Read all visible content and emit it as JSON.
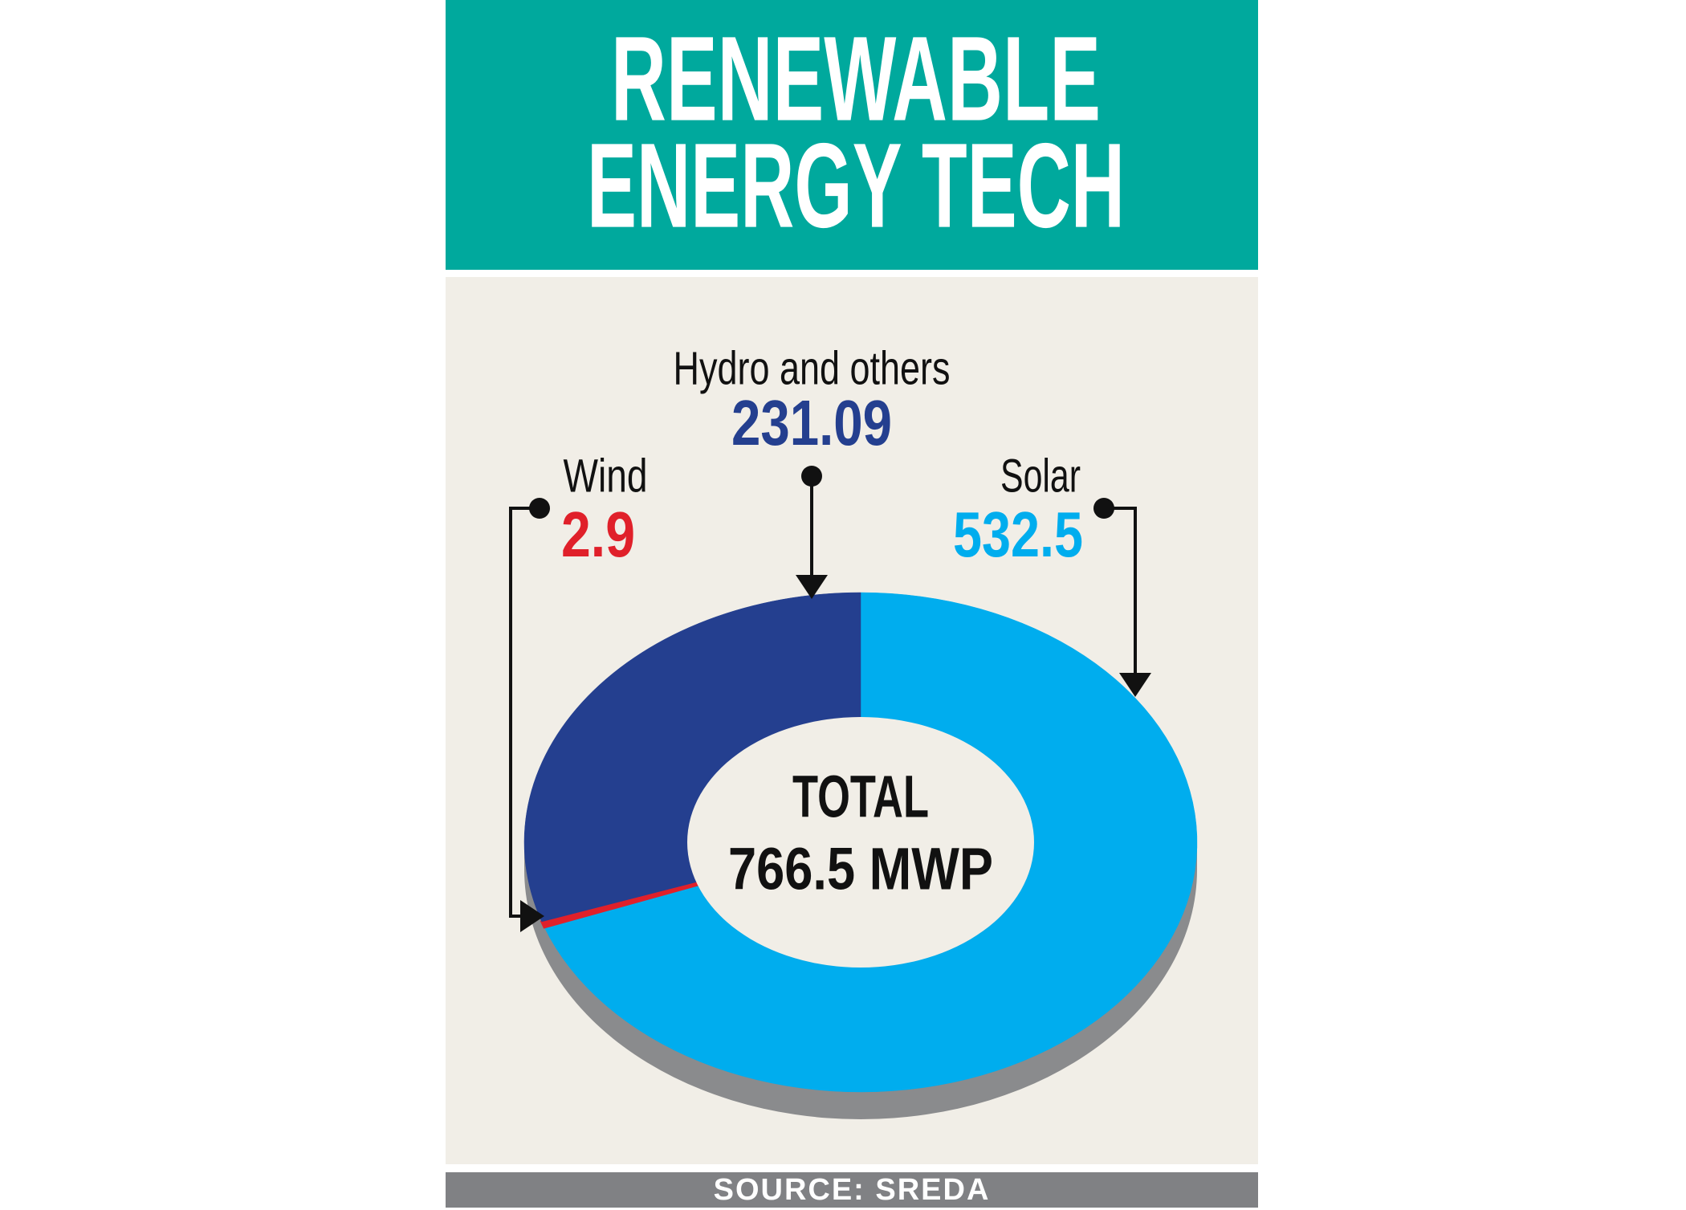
{
  "chart_data": {
    "type": "pie",
    "title": [
      "RENEWABLE",
      "ENERGY TECH"
    ],
    "categories": [
      "Solar",
      "Wind",
      "Hydro and others"
    ],
    "values": [
      532.5,
      2.9,
      231.09
    ],
    "colors": [
      "#00adee",
      "#e0202a",
      "#243f8f"
    ],
    "center_label": [
      "TOTAL",
      "766.5 MWP"
    ],
    "source": "SOURCE: SREDA"
  }
}
